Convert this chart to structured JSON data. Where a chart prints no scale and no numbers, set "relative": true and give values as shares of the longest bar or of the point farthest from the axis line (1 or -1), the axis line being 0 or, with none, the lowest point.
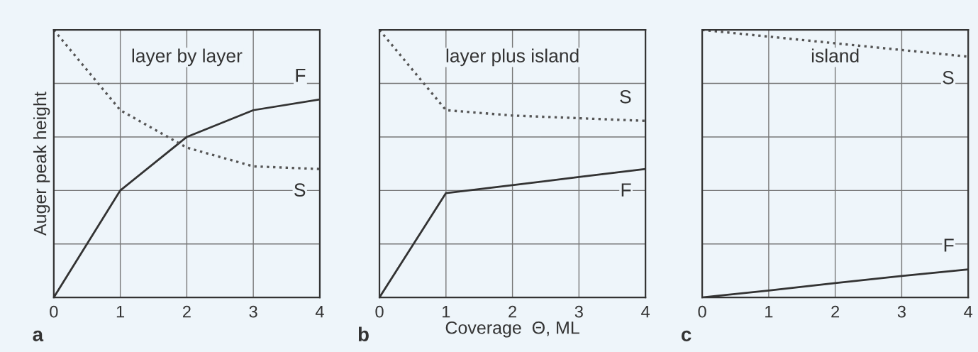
{
  "chart_data": [
    {
      "type": "line",
      "title": "layer by layer",
      "ylabel": "Auger peak height",
      "x": [
        0,
        1,
        2,
        3,
        4
      ],
      "xlim": [
        0,
        4
      ],
      "xticks": [
        0,
        1,
        2,
        3,
        4
      ],
      "relative": true,
      "grid": true,
      "annotations": [
        "a"
      ],
      "series": [
        {
          "name": "F",
          "color": "#333333",
          "line_style": "solid",
          "values": [
            0,
            0.4,
            0.6,
            0.7,
            0.74
          ]
        },
        {
          "name": "S",
          "color": "#555555",
          "line_style": "dotted",
          "values": [
            1,
            0.7,
            0.56,
            0.49,
            0.48
          ]
        }
      ]
    },
    {
      "type": "line",
      "title": "layer plus island",
      "xlabel": "Coverage  Θ, ML",
      "x": [
        0,
        1,
        2,
        3,
        4
      ],
      "xlim": [
        0,
        4
      ],
      "xticks": [
        0,
        1,
        2,
        3,
        4
      ],
      "relative": true,
      "grid": true,
      "annotations": [
        "b"
      ],
      "series": [
        {
          "name": "S",
          "color": "#555555",
          "line_style": "dotted",
          "values": [
            1,
            0.7,
            0.68,
            0.67,
            0.66
          ]
        },
        {
          "name": "F",
          "color": "#333333",
          "line_style": "solid",
          "values": [
            0,
            0.39,
            0.42,
            0.45,
            0.48
          ]
        }
      ]
    },
    {
      "type": "line",
      "title": "island",
      "x": [
        0,
        1,
        2,
        3,
        4
      ],
      "xlim": [
        0,
        4
      ],
      "xticks": [
        0,
        1,
        2,
        3,
        4
      ],
      "relative": true,
      "grid": true,
      "annotations": [
        "c"
      ],
      "series": [
        {
          "name": "S",
          "color": "#555555",
          "line_style": "dotted",
          "values": [
            1,
            0.975,
            0.95,
            0.925,
            0.9
          ]
        },
        {
          "name": "F",
          "color": "#333333",
          "line_style": "solid",
          "values": [
            0,
            0.026,
            0.054,
            0.08,
            0.105
          ]
        }
      ]
    }
  ]
}
